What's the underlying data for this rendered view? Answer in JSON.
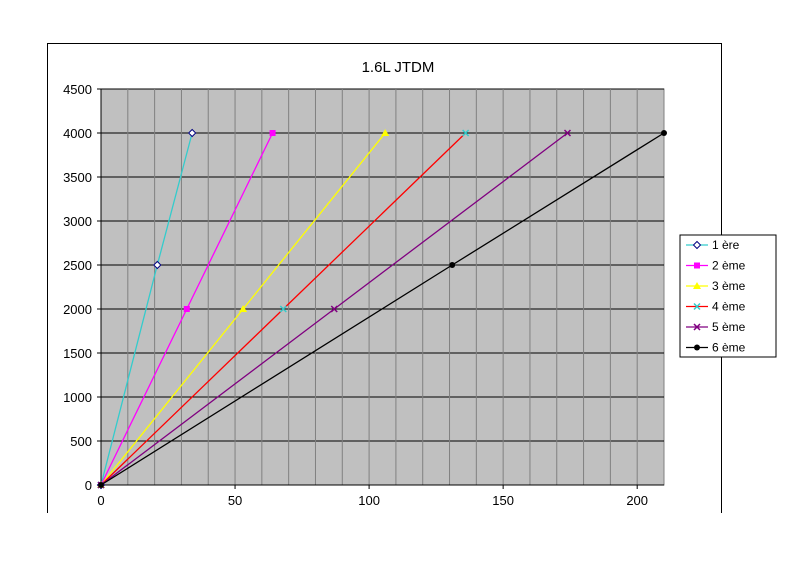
{
  "chart_data": {
    "type": "line",
    "title": "1.6L JTDM",
    "xlabel": "",
    "ylabel": "",
    "xlim": [
      0,
      210
    ],
    "ylim": [
      0,
      4500
    ],
    "x_ticks": [
      0,
      50,
      100,
      150,
      200
    ],
    "y_ticks": [
      0,
      500,
      1000,
      1500,
      2000,
      2500,
      3000,
      3500,
      4000,
      4500
    ],
    "x_grid_step": 10,
    "grid": true,
    "plot_background": "#c0c0c0",
    "legend_position": "right",
    "series": [
      {
        "name": "1 ère",
        "color": "#33cccc",
        "marker": "diamond-open",
        "points": [
          [
            0,
            0
          ],
          [
            21,
            2500
          ],
          [
            34,
            4000
          ]
        ]
      },
      {
        "name": "2 ème",
        "color": "#ff00ff",
        "marker": "square",
        "points": [
          [
            0,
            0
          ],
          [
            32,
            2000
          ],
          [
            64,
            4000
          ]
        ]
      },
      {
        "name": "3 ème",
        "color": "#ffff00",
        "marker": "triangle",
        "points": [
          [
            0,
            0
          ],
          [
            53,
            2000
          ],
          [
            106,
            4000
          ]
        ]
      },
      {
        "name": "4 ème",
        "color": "#33cccc",
        "line_color": "#ff0000",
        "marker": "x",
        "points": [
          [
            0,
            0
          ],
          [
            68,
            2000
          ],
          [
            136,
            4000
          ]
        ]
      },
      {
        "name": "5 ème",
        "color": "#800080",
        "marker": "x",
        "points": [
          [
            0,
            0
          ],
          [
            87,
            2000
          ],
          [
            174,
            4000
          ]
        ]
      },
      {
        "name": "6 ème",
        "color": "#000000",
        "marker": "circle",
        "points": [
          [
            0,
            0
          ],
          [
            131,
            2500
          ],
          [
            210,
            4000
          ]
        ]
      }
    ]
  }
}
